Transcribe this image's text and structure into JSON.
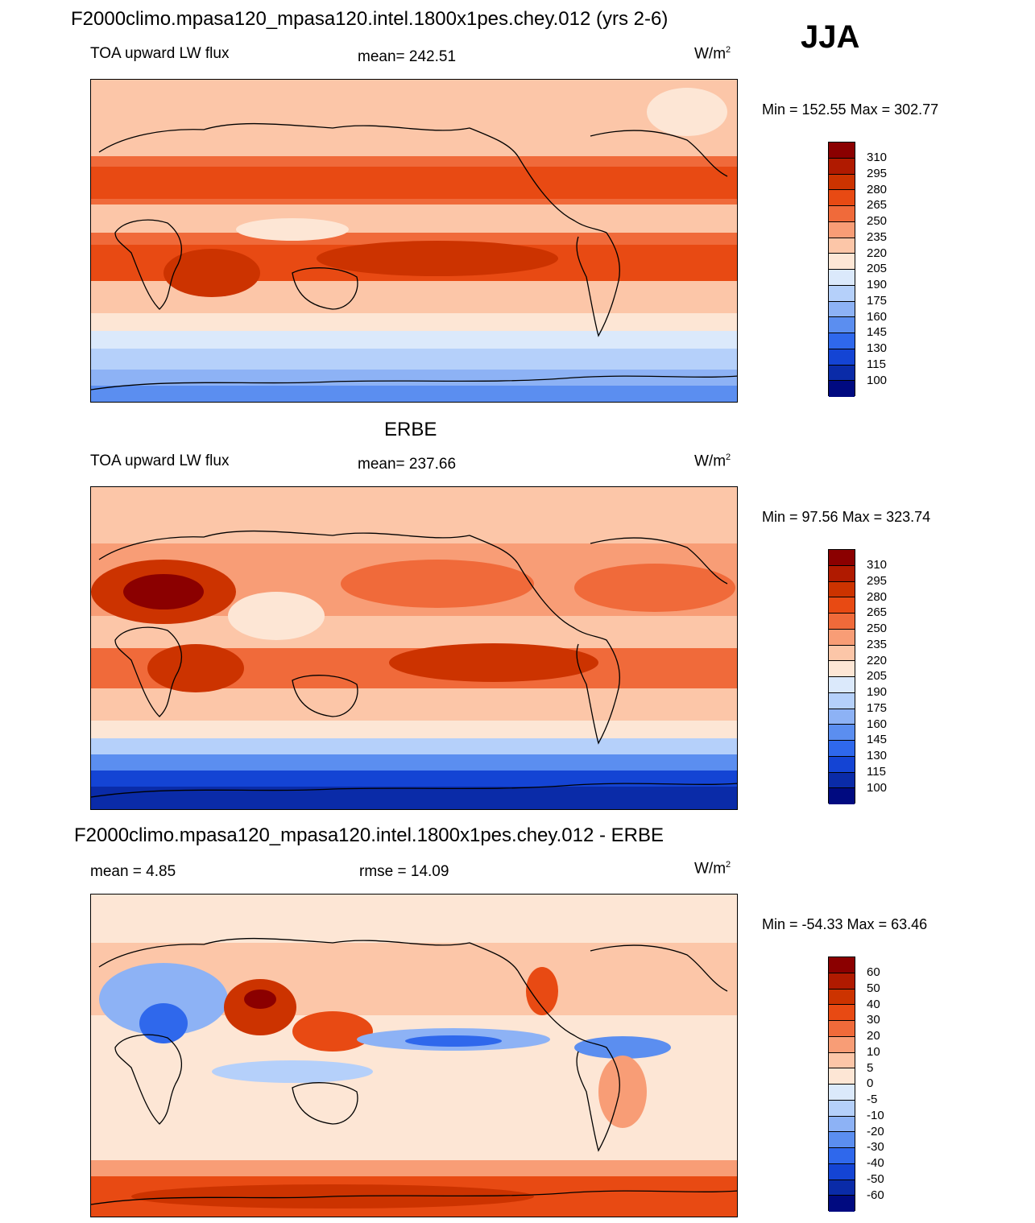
{
  "season": "JJA",
  "panels": [
    {
      "title": "F2000climo.mpasa120_mpasa120.intel.1800x1pes.chey.012 (yrs 2-6)",
      "left_label": "TOA upward LW flux",
      "center_label": "mean= 242.51",
      "units": "W/m",
      "units_sup": "2",
      "minmax": "Min = 152.55 Max = 302.77"
    },
    {
      "title": "ERBE",
      "left_label": "TOA upward LW flux",
      "center_label": "mean= 237.66",
      "units": "W/m",
      "units_sup": "2",
      "minmax": "Min =  97.56 Max = 323.74"
    },
    {
      "title": "F2000climo.mpasa120_mpasa120.intel.1800x1pes.chey.012 - ERBE",
      "left_label": "mean =   4.85",
      "center_label": "rmse =  14.09",
      "units": "W/m",
      "units_sup": "2",
      "minmax": "Min = -54.33 Max =  63.46"
    }
  ],
  "colorbars": [
    {
      "labels": [
        "310",
        "295",
        "280",
        "265",
        "250",
        "235",
        "220",
        "205",
        "190",
        "175",
        "160",
        "145",
        "130",
        "115",
        "100"
      ],
      "colors": [
        "#8b0000",
        "#b01a00",
        "#cc3300",
        "#e84a13",
        "#f06a3a",
        "#f89d76",
        "#fcc6a8",
        "#fde6d5",
        "#dbe9fb",
        "#b5d0fa",
        "#8db2f5",
        "#5b8ef0",
        "#2f68ec",
        "#1444d4",
        "#0a2ba8",
        "#000a80"
      ]
    },
    {
      "labels": [
        "310",
        "295",
        "280",
        "265",
        "250",
        "235",
        "220",
        "205",
        "190",
        "175",
        "160",
        "145",
        "130",
        "115",
        "100"
      ],
      "colors": [
        "#8b0000",
        "#b01a00",
        "#cc3300",
        "#e84a13",
        "#f06a3a",
        "#f89d76",
        "#fcc6a8",
        "#fde6d5",
        "#dbe9fb",
        "#b5d0fa",
        "#8db2f5",
        "#5b8ef0",
        "#2f68ec",
        "#1444d4",
        "#0a2ba8",
        "#000a80"
      ]
    },
    {
      "labels": [
        "60",
        "50",
        "40",
        "30",
        "20",
        "10",
        "5",
        "0",
        "-5",
        "-10",
        "-20",
        "-30",
        "-40",
        "-50",
        "-60"
      ],
      "colors": [
        "#8b0000",
        "#b01a00",
        "#cc3300",
        "#e84a13",
        "#f06a3a",
        "#f89d76",
        "#fcc6a8",
        "#fde6d5",
        "#dbe9fb",
        "#b5d0fa",
        "#8db2f5",
        "#5b8ef0",
        "#2f68ec",
        "#1444d4",
        "#0a2ba8",
        "#000a80"
      ]
    }
  ]
}
